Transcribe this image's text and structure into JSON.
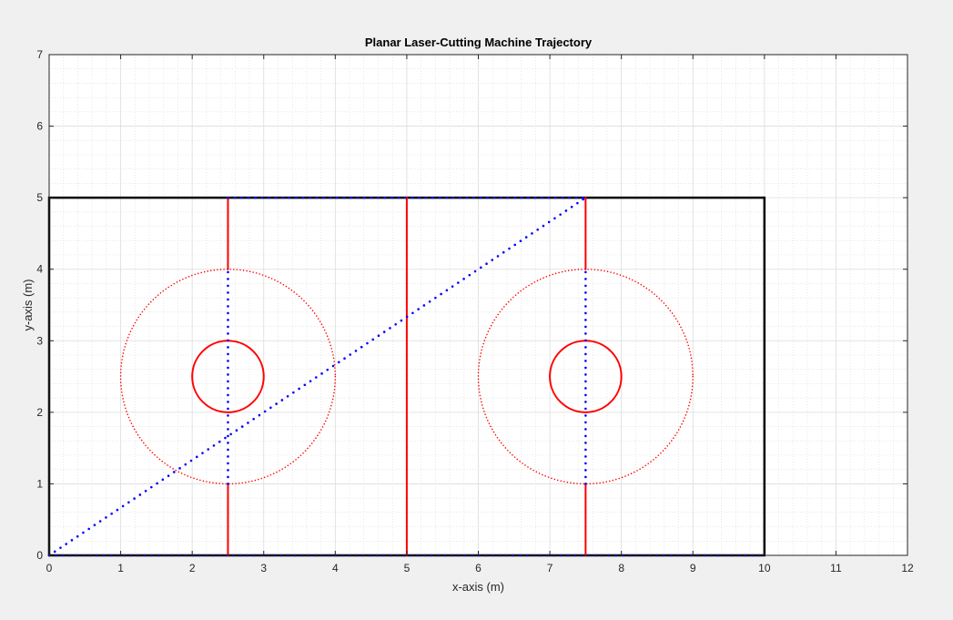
{
  "chart_data": {
    "type": "line",
    "title": "Planar Laser-Cutting Machine Trajectory",
    "xlabel": "x-axis (m)",
    "ylabel": "y-axis (m)",
    "xlim": [
      0,
      12
    ],
    "ylim": [
      0,
      7
    ],
    "xticks": [
      "0",
      "1",
      "2",
      "3",
      "4",
      "5",
      "6",
      "7",
      "8",
      "9",
      "10",
      "11",
      "12"
    ],
    "yticks": [
      "0",
      "1",
      "2",
      "3",
      "4",
      "5",
      "6",
      "7"
    ],
    "grid": true,
    "minor_grid": true,
    "colors": {
      "workpiece": "#000000",
      "cut": "#ff0000",
      "travel": "#0000ff"
    },
    "series": [
      {
        "style": "solid",
        "color": "#000000",
        "x": [
          0,
          10,
          10,
          0,
          0
        ],
        "y": [
          0,
          0,
          5,
          5,
          0
        ]
      },
      {
        "style": "solid",
        "color": "#ff0000",
        "x": [
          2.5,
          2.5
        ],
        "y": [
          0,
          1
        ]
      },
      {
        "style": "solid",
        "color": "#ff0000",
        "x": [
          2.5,
          2.5
        ],
        "y": [
          4,
          5
        ]
      },
      {
        "style": "solid",
        "color": "#ff0000",
        "x": [
          5,
          5
        ],
        "y": [
          0,
          5
        ]
      },
      {
        "style": "solid",
        "color": "#ff0000",
        "x": [
          7.5,
          7.5
        ],
        "y": [
          0,
          1
        ]
      },
      {
        "style": "solid",
        "color": "#ff0000",
        "x": [
          7.5,
          7.5
        ],
        "y": [
          4,
          5
        ]
      },
      {
        "style": "solid",
        "color": "#ff0000",
        "circle": {
          "cx": 2.5,
          "cy": 2.5,
          "r": 0.5
        }
      },
      {
        "style": "solid",
        "color": "#ff0000",
        "circle": {
          "cx": 7.5,
          "cy": 2.5,
          "r": 0.5
        }
      },
      {
        "style": "dotted",
        "color": "#ff0000",
        "circle": {
          "cx": 2.5,
          "cy": 2.5,
          "r": 1.5
        }
      },
      {
        "style": "dotted",
        "color": "#ff0000",
        "circle": {
          "cx": 7.5,
          "cy": 2.5,
          "r": 1.5
        }
      },
      {
        "style": "dotted",
        "color": "#0000ff",
        "x": [
          0,
          7.5
        ],
        "y": [
          0,
          5
        ]
      },
      {
        "style": "dotted",
        "color": "#0000ff",
        "x": [
          2.5,
          2.5
        ],
        "y": [
          1,
          4
        ]
      },
      {
        "style": "dotted",
        "color": "#0000ff",
        "x": [
          7.5,
          7.5
        ],
        "y": [
          1,
          4
        ]
      },
      {
        "style": "dotted",
        "color": "#0000ff",
        "x": [
          0,
          10
        ],
        "y": [
          0,
          0
        ]
      },
      {
        "style": "dotted",
        "color": "#0000ff",
        "x": [
          2.5,
          7.5
        ],
        "y": [
          5,
          5
        ]
      }
    ]
  }
}
